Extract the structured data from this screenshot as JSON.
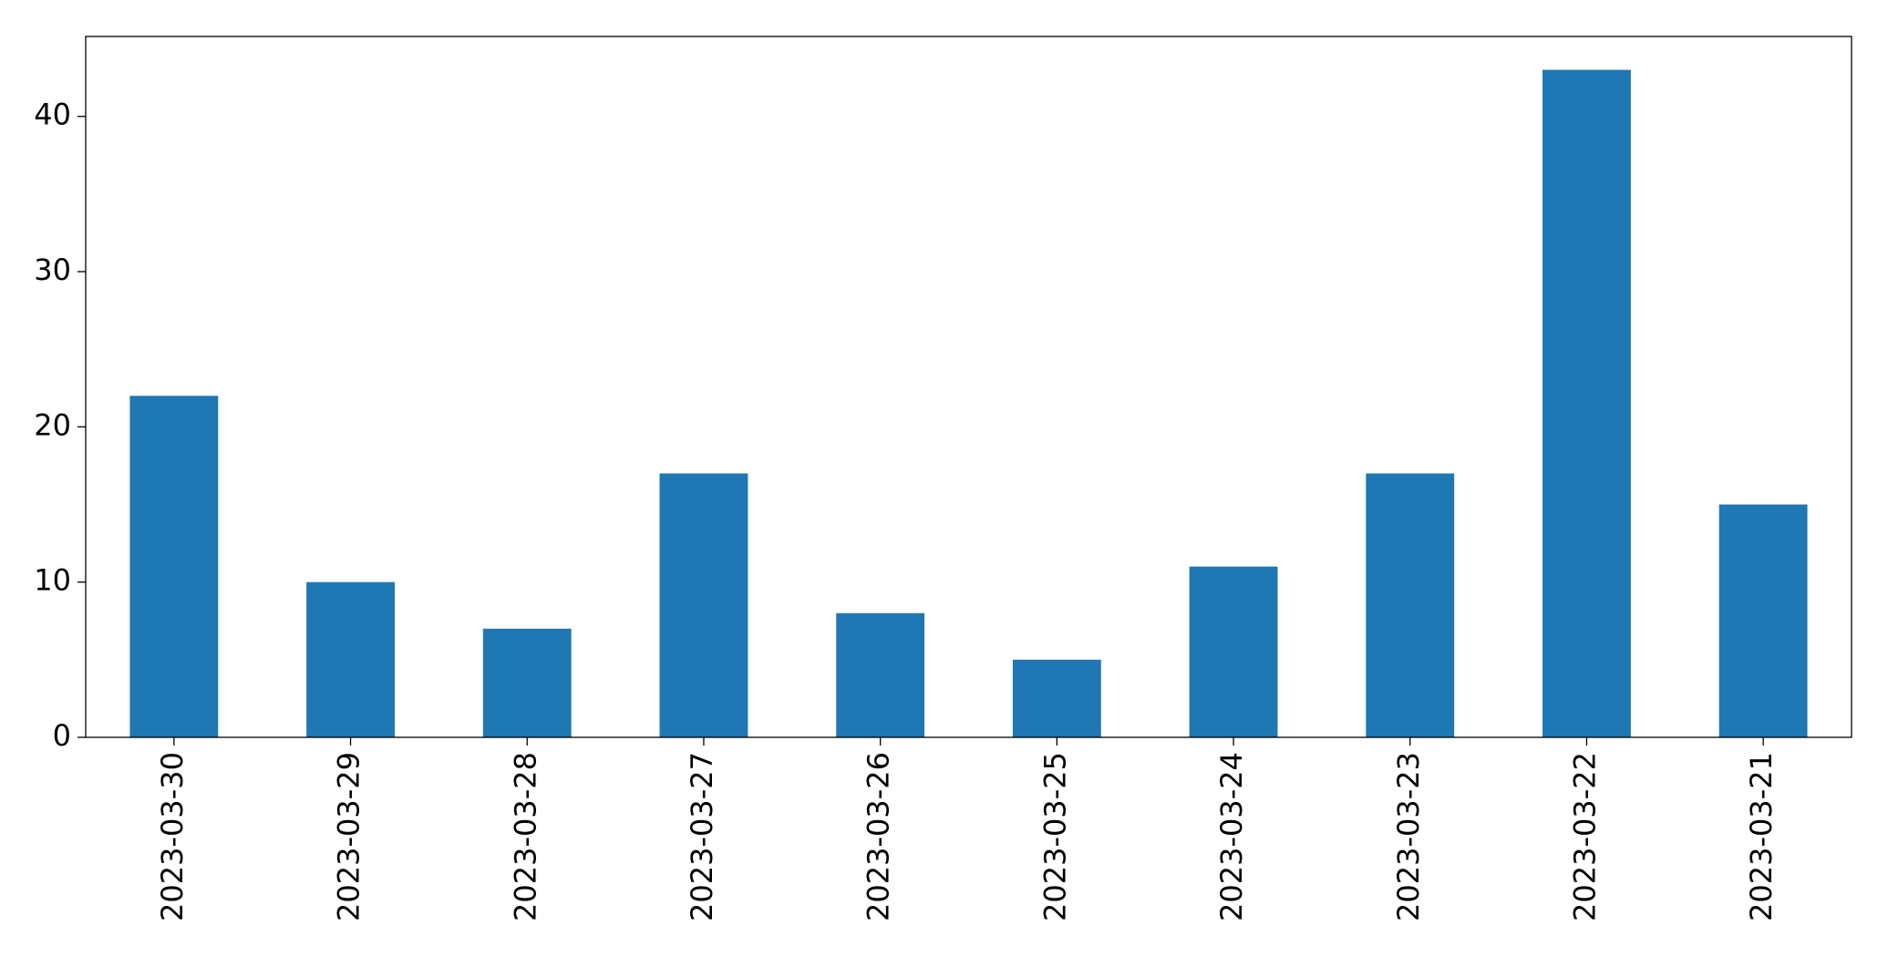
{
  "chart_data": {
    "type": "bar",
    "categories": [
      "2023-03-30",
      "2023-03-29",
      "2023-03-28",
      "2023-03-27",
      "2023-03-26",
      "2023-03-25",
      "2023-03-24",
      "2023-03-23",
      "2023-03-22",
      "2023-03-21"
    ],
    "values": [
      22,
      10,
      7,
      17,
      8,
      5,
      11,
      17,
      43,
      15
    ],
    "color": "#1f77b4",
    "ylim": [
      0,
      45.15
    ],
    "yticks": [
      0,
      10,
      20,
      30,
      40
    ],
    "grid": false
  }
}
